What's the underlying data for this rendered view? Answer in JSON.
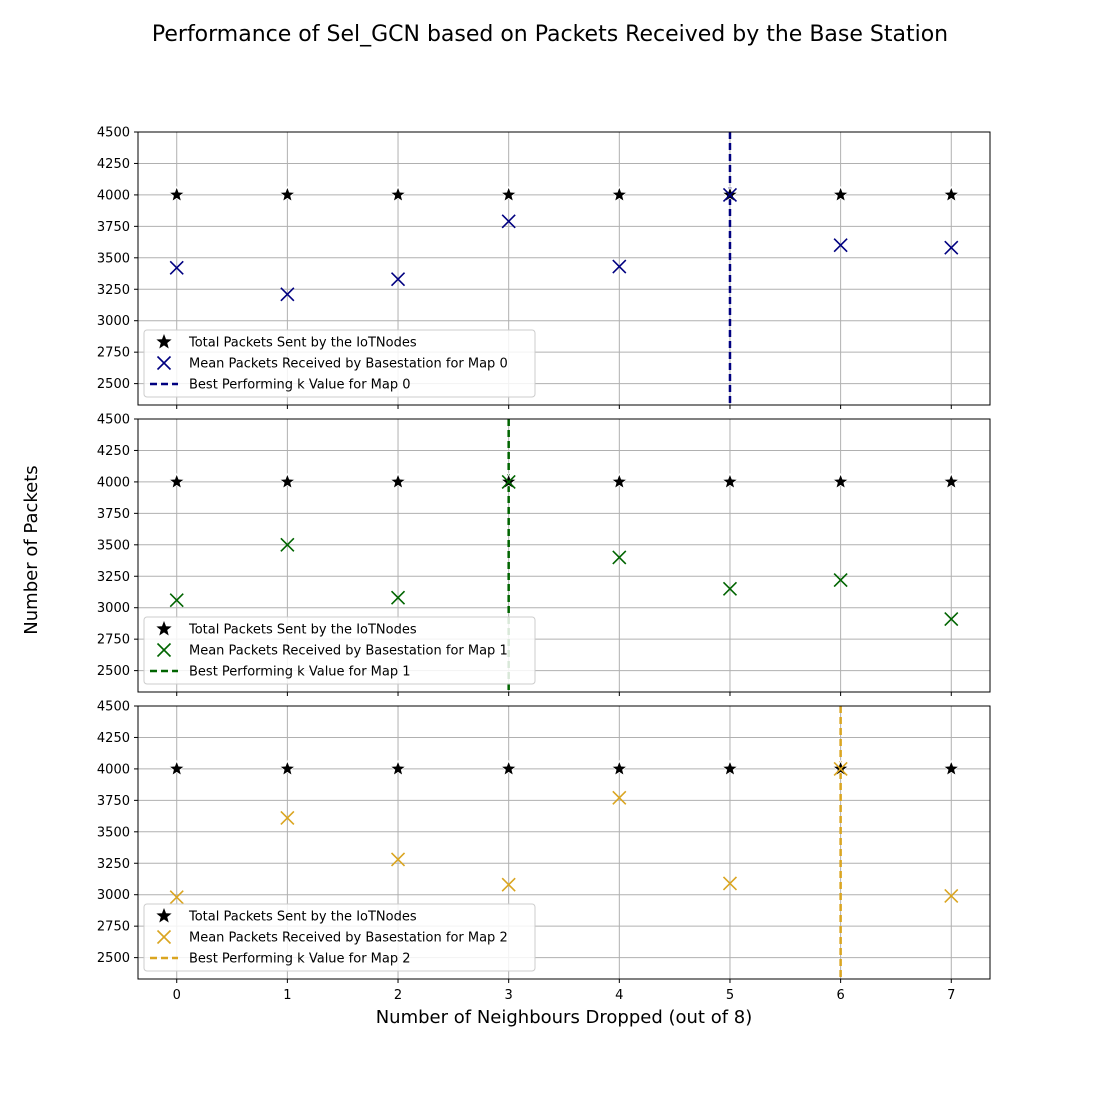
{
  "chart_data": {
    "type": "scatter",
    "title": "Performance of Sel_GCN based on Packets Received by the Base Station",
    "xlabel": "Number of Neighbours Dropped (out of 8)",
    "ylabel": "Number of Packets",
    "x": [
      0,
      1,
      2,
      3,
      4,
      5,
      6,
      7
    ],
    "x_ticks": [
      "0",
      "1",
      "2",
      "3",
      "4",
      "5",
      "6",
      "7"
    ],
    "xlim": [
      -0.35,
      7.35
    ],
    "ylim": [
      2330,
      4500
    ],
    "y_ticks": [
      "2500",
      "2750",
      "3000",
      "3250",
      "3500",
      "3750",
      "4000",
      "4250",
      "4500"
    ],
    "grid": true,
    "legend_position": "lower-left",
    "subplots": [
      {
        "marker_color": "#000080",
        "series": [
          {
            "name": "Total Packets Sent by the IoTNodes",
            "marker": "star",
            "color": "#000000",
            "values": [
              4000,
              4000,
              4000,
              4000,
              4000,
              4000,
              4000,
              4000
            ]
          },
          {
            "name": "Mean Packets Received by Basestation for Map 0",
            "marker": "x",
            "color": "#000080",
            "values": [
              3420,
              3210,
              3330,
              3790,
              3430,
              4000,
              3600,
              3580
            ]
          }
        ],
        "best_k": {
          "name": "Best Performing k Value for Map 0",
          "x": 5,
          "color": "#000080"
        }
      },
      {
        "marker_color": "#006400",
        "series": [
          {
            "name": "Total Packets Sent by the IoTNodes",
            "marker": "star",
            "color": "#000000",
            "values": [
              4000,
              4000,
              4000,
              4000,
              4000,
              4000,
              4000,
              4000
            ]
          },
          {
            "name": "Mean Packets Received by Basestation for Map 1",
            "marker": "x",
            "color": "#006400",
            "values": [
              3060,
              3500,
              3080,
              4000,
              3400,
              3150,
              3220,
              2910
            ]
          }
        ],
        "best_k": {
          "name": "Best Performing k Value for Map 1",
          "x": 3,
          "color": "#006400"
        }
      },
      {
        "marker_color": "#DAA520",
        "series": [
          {
            "name": "Total Packets Sent by the IoTNodes",
            "marker": "star",
            "color": "#000000",
            "values": [
              4000,
              4000,
              4000,
              4000,
              4000,
              4000,
              4000,
              4000
            ]
          },
          {
            "name": "Mean Packets Received by Basestation for Map 2",
            "marker": "x",
            "color": "#DAA520",
            "values": [
              2980,
              3610,
              3280,
              3080,
              3770,
              3090,
              4000,
              2990
            ]
          }
        ],
        "best_k": {
          "name": "Best Performing k Value for Map 2",
          "x": 6,
          "color": "#DAA520"
        }
      }
    ]
  }
}
